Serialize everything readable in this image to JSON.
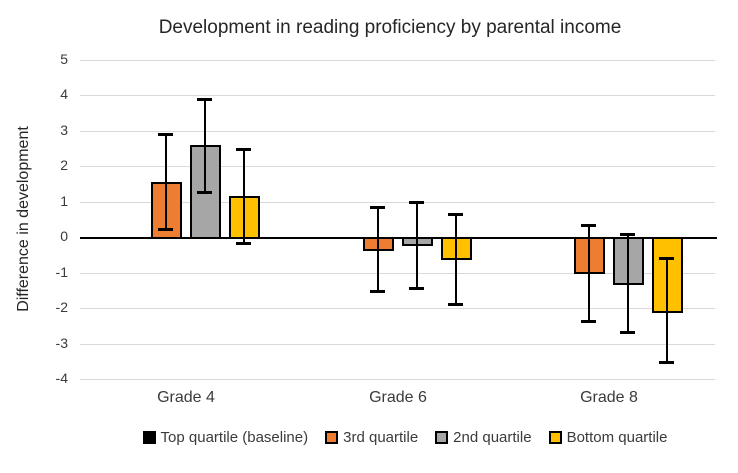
{
  "chart_data": {
    "type": "bar",
    "title": "Development in reading proficiency by parental income",
    "ylabel": "Difference in development",
    "xlabel": "",
    "categories": [
      "Grade 4",
      "Grade 6",
      "Grade 8"
    ],
    "ylim": [
      -4,
      5
    ],
    "ytick_step": 1,
    "grid": true,
    "legend_position": "bottom",
    "error_bars": true,
    "series": [
      {
        "name": "Top quartile (baseline)",
        "color": "#000000",
        "baseline": true,
        "values": [
          0,
          0,
          0
        ]
      },
      {
        "name": "3rd quartile",
        "color": "#ED7D31",
        "values": [
          1.55,
          -0.35,
          -1.0
        ],
        "error_low": [
          0.2,
          -1.55,
          -2.4
        ],
        "error_high": [
          2.9,
          0.85,
          0.35
        ]
      },
      {
        "name": "2nd quartile",
        "color": "#A6A6A6",
        "values": [
          2.6,
          -0.2,
          -1.3
        ],
        "error_low": [
          1.25,
          -1.45,
          -2.7
        ],
        "error_high": [
          3.9,
          1.0,
          0.1
        ]
      },
      {
        "name": "Bottom quartile",
        "color": "#FFC000",
        "values": [
          1.15,
          -0.6,
          -2.1
        ],
        "error_low": [
          -0.2,
          -1.9,
          -3.55
        ],
        "error_high": [
          2.5,
          0.65,
          -0.6
        ]
      }
    ]
  },
  "colors": {
    "gridline": "#D9D9D9",
    "axis_line": "#000000",
    "text": "#3B3B3B",
    "background": "#FFFFFF"
  }
}
